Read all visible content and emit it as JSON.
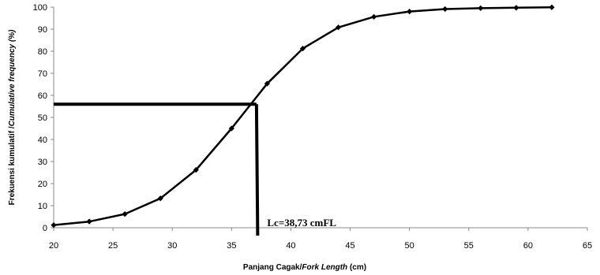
{
  "chart_data": {
    "type": "line",
    "title": "",
    "xlabel_parts": [
      "Panjang Cagak/",
      "Fork Length",
      " (cm)"
    ],
    "ylabel_parts": [
      "Frekuensi kumulatif /",
      "Cumulative frequency (%)"
    ],
    "xlim": [
      20,
      65
    ],
    "ylim": [
      0,
      100
    ],
    "x_ticks": [
      20,
      25,
      30,
      35,
      40,
      45,
      50,
      55,
      60,
      65
    ],
    "y_ticks": [
      0,
      10,
      20,
      30,
      40,
      50,
      60,
      70,
      80,
      90,
      100
    ],
    "grid": false,
    "series": [
      {
        "x": [
          20,
          23,
          26,
          29,
          32,
          35,
          38,
          41,
          44,
          47,
          50,
          53,
          56,
          59,
          62
        ],
        "y": [
          1.2,
          2.8,
          6.2,
          13.3,
          26.2,
          45.0,
          65.3,
          81.2,
          90.8,
          95.6,
          98.0,
          99.1,
          99.5,
          99.7,
          99.9
        ],
        "color": "#000000",
        "marker": "diamond"
      }
    ],
    "annotation": {
      "text": "Lc=38,73 cmFL",
      "h_line": {
        "y": 56,
        "x_from": 20,
        "x_to": 37.1
      },
      "v_line": {
        "x": 37.1,
        "y_from": 56,
        "x_at_bottom": 37.2
      }
    }
  }
}
